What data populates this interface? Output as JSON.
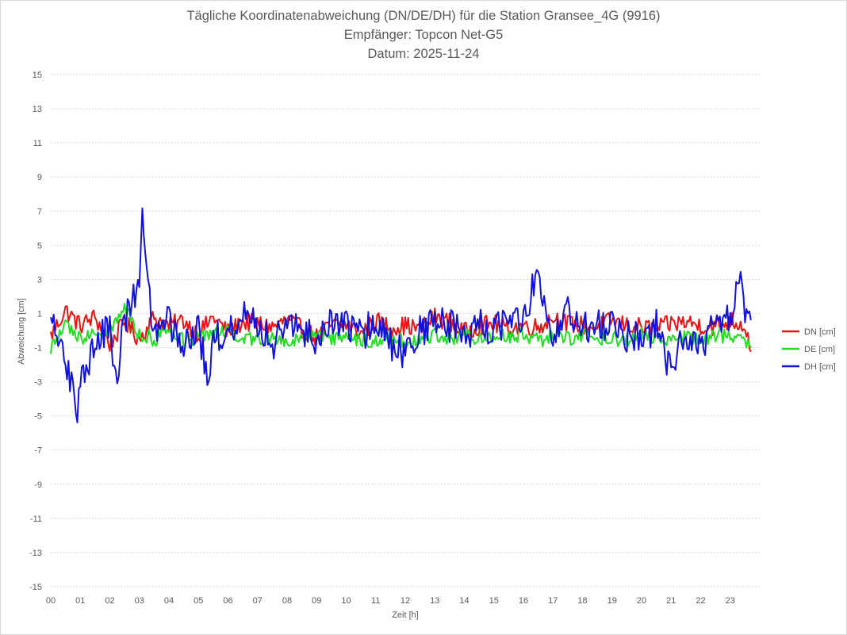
{
  "chart_data": {
    "type": "line",
    "title": "Tägliche Koordinatenabweichung (DN/DE/DH) für die Station Gransee_4G (9916)",
    "subtitle1": "Empfänger: Topcon Net-G5",
    "subtitle2": "Datum: 2025-11-24",
    "xlabel": "Zeit [h]",
    "ylabel": "Abweichung [cm]",
    "ylim": [
      -15,
      15
    ],
    "xlim": [
      0,
      24
    ],
    "yticks": [
      15,
      13,
      11,
      9,
      7,
      5,
      3,
      1,
      -1,
      -3,
      -5,
      -7,
      -9,
      -11,
      -13,
      -15
    ],
    "xticks": [
      "00",
      "01",
      "02",
      "03",
      "04",
      "05",
      "06",
      "07",
      "08",
      "09",
      "10",
      "11",
      "12",
      "13",
      "14",
      "15",
      "16",
      "17",
      "18",
      "19",
      "20",
      "21",
      "22",
      "23"
    ],
    "grid": "horizontal-dotted",
    "legend_position": "right",
    "series": [
      {
        "name": "DN [cm]",
        "color": "#ee1111",
        "x": [
          0.0,
          0.5,
          1.0,
          1.5,
          2.0,
          2.5,
          3.0,
          3.5,
          4.0,
          4.5,
          5.0,
          5.5,
          6.0,
          6.5,
          7.0,
          7.5,
          8.0,
          8.5,
          9.0,
          9.5,
          10.0,
          10.5,
          11.0,
          11.5,
          12.0,
          12.5,
          13.0,
          13.5,
          14.0,
          14.5,
          15.0,
          15.5,
          16.0,
          16.5,
          17.0,
          17.5,
          18.0,
          18.5,
          19.0,
          19.5,
          20.0,
          20.5,
          21.0,
          21.5,
          22.0,
          22.5,
          23.0,
          23.5,
          23.7
        ],
        "y": [
          -0.3,
          1.2,
          0.3,
          0.8,
          -0.8,
          0.5,
          -0.5,
          0.8,
          0.3,
          0.6,
          -0.2,
          0.8,
          -0.1,
          0.5,
          0.4,
          0.2,
          0.6,
          0.1,
          -0.4,
          0.3,
          0.4,
          -0.2,
          0.6,
          0.2,
          0.3,
          0.1,
          0.8,
          0.5,
          -0.1,
          0.3,
          0.4,
          0.1,
          0.3,
          0.2,
          0.8,
          0.4,
          0.3,
          0.2,
          0.6,
          0.3,
          0.2,
          0.1,
          0.4,
          0.5,
          0.3,
          0.2,
          0.6,
          0.3,
          -1.0
        ]
      },
      {
        "name": "DE [cm]",
        "color": "#22dd22",
        "x": [
          0.0,
          0.5,
          1.0,
          1.5,
          2.0,
          2.5,
          3.0,
          3.5,
          4.0,
          4.5,
          5.0,
          5.5,
          6.0,
          6.5,
          7.0,
          7.5,
          8.0,
          8.5,
          9.0,
          9.5,
          10.0,
          10.5,
          11.0,
          11.5,
          12.0,
          12.5,
          13.0,
          13.5,
          14.0,
          14.5,
          15.0,
          15.5,
          16.0,
          16.5,
          17.0,
          17.5,
          18.0,
          18.5,
          19.0,
          19.5,
          20.0,
          20.5,
          21.0,
          21.5,
          22.0,
          22.5,
          23.0,
          23.5,
          23.7
        ],
        "y": [
          -1.0,
          0.2,
          -0.4,
          -0.2,
          0.0,
          1.5,
          -0.3,
          -0.5,
          -0.2,
          -0.6,
          -0.4,
          -0.3,
          0.0,
          -0.4,
          -0.7,
          -0.3,
          -0.6,
          -0.5,
          -0.1,
          -0.5,
          -0.2,
          -0.6,
          -0.5,
          -0.3,
          -0.6,
          -0.7,
          -0.2,
          -0.4,
          -0.3,
          -0.5,
          -0.4,
          -0.3,
          -0.2,
          -0.6,
          -0.3,
          -0.5,
          -0.3,
          -0.4,
          -0.4,
          -0.6,
          -0.2,
          -0.5,
          -0.4,
          -0.3,
          -0.6,
          -0.2,
          -0.5,
          -0.5,
          -0.8
        ]
      },
      {
        "name": "DH [cm]",
        "color": "#1111dd",
        "x": [
          0.0,
          0.5,
          0.9,
          1.0,
          1.5,
          2.0,
          2.2,
          2.5,
          3.0,
          3.1,
          3.3,
          3.5,
          4.0,
          4.5,
          5.0,
          5.3,
          5.5,
          6.0,
          6.5,
          7.0,
          7.5,
          8.0,
          8.5,
          9.0,
          9.5,
          10.0,
          10.5,
          11.0,
          11.5,
          12.0,
          12.5,
          13.0,
          13.5,
          14.0,
          14.5,
          15.0,
          15.5,
          16.0,
          16.5,
          17.0,
          17.5,
          18.0,
          18.5,
          19.0,
          19.5,
          20.0,
          20.5,
          21.0,
          21.5,
          22.0,
          22.5,
          23.0,
          23.3,
          23.5,
          23.7
        ],
        "y": [
          0.8,
          -1.5,
          -5.2,
          -2.5,
          -1.0,
          0.5,
          -3.3,
          0.5,
          3.0,
          6.7,
          2.0,
          0.2,
          0.5,
          -0.5,
          0.3,
          -2.8,
          -0.5,
          0.0,
          1.0,
          0.5,
          -1.0,
          0.5,
          0.0,
          -0.5,
          0.5,
          0.2,
          -0.3,
          0.5,
          -0.8,
          -1.5,
          0.0,
          0.5,
          0.3,
          -0.3,
          0.5,
          0.0,
          0.5,
          0.5,
          3.7,
          -0.5,
          1.0,
          0.0,
          0.5,
          0.2,
          -0.3,
          -0.5,
          0.3,
          -2.5,
          0.0,
          -1.0,
          0.5,
          0.5,
          3.3,
          0.3,
          1.2
        ]
      }
    ]
  }
}
